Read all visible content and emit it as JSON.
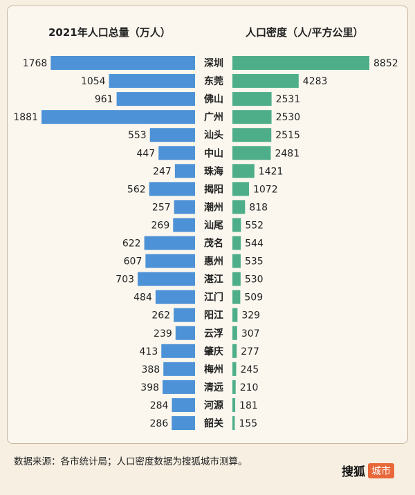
{
  "titles": {
    "left": "2021年人口总量（万人）",
    "right": "人口密度（人/平方公里）"
  },
  "footer": {
    "source": "数据来源：各市统计局；人口密度数据为搜狐城市测算。"
  },
  "logo": {
    "main": "搜狐",
    "badge": "城市"
  },
  "colors": {
    "population": "#4d92d6",
    "density": "#4fae8a",
    "badge": "#e8683a"
  },
  "chart_data": {
    "type": "bar",
    "categories": [
      "深圳",
      "东莞",
      "佛山",
      "广州",
      "汕头",
      "中山",
      "珠海",
      "揭阳",
      "潮州",
      "汕尾",
      "茂名",
      "惠州",
      "湛江",
      "江门",
      "阳江",
      "云浮",
      "肇庆",
      "梅州",
      "清远",
      "河源",
      "韶关"
    ],
    "series": [
      {
        "name": "2021年人口总量（万人）",
        "values": [
          1768,
          1054,
          961,
          1881,
          553,
          447,
          247,
          562,
          257,
          269,
          622,
          607,
          703,
          484,
          262,
          239,
          413,
          388,
          398,
          284,
          286
        ]
      },
      {
        "name": "人口密度（人/平方公里）",
        "values": [
          8852,
          4283,
          2531,
          2530,
          2515,
          2481,
          1421,
          1072,
          818,
          552,
          544,
          535,
          530,
          509,
          329,
          307,
          277,
          245,
          210,
          181,
          155
        ]
      }
    ]
  }
}
